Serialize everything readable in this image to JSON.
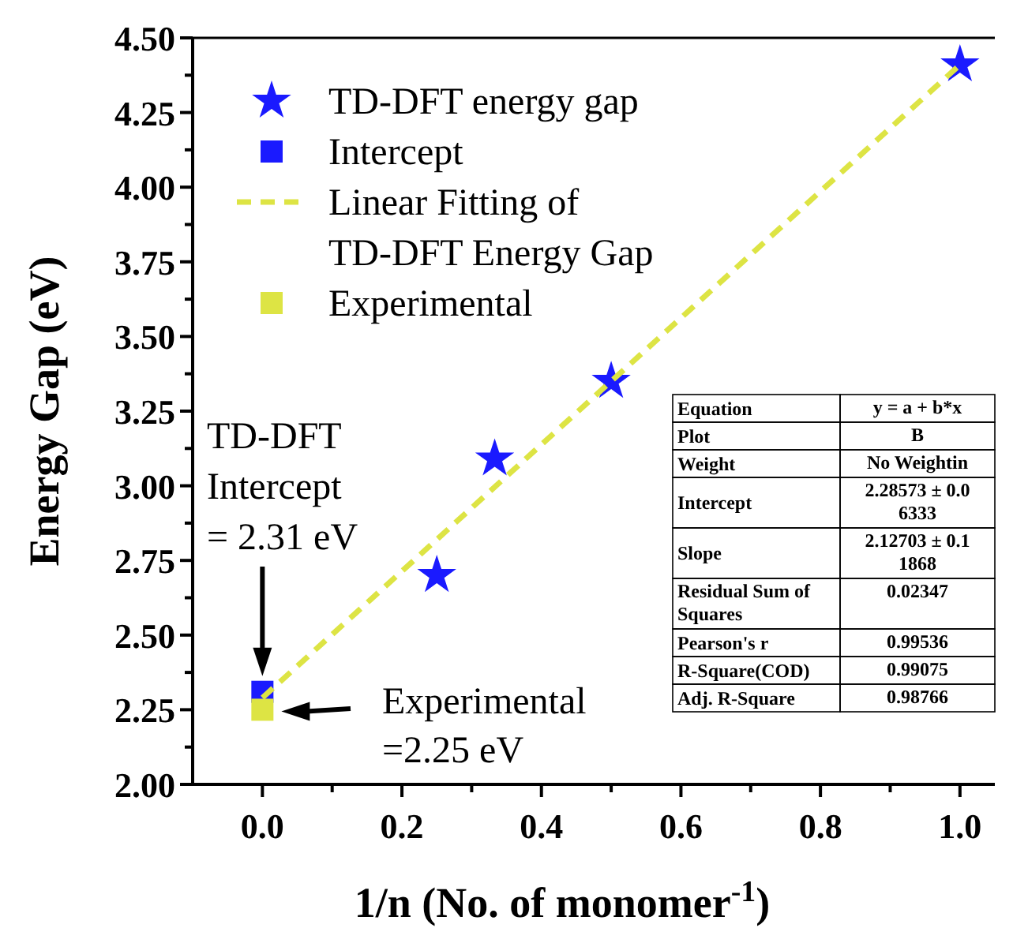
{
  "chart_data": {
    "type": "scatter",
    "xlabel": "1/n (No. of monomer$^{-1}$)",
    "ylabel": "Energy Gap (eV)",
    "xlim": [
      -0.1,
      1.05
    ],
    "xticks": [
      {
        "value": 0,
        "label": "0.0"
      },
      {
        "value": 0.2,
        "label": "0.2"
      },
      {
        "value": 0.4,
        "label": "0.4"
      },
      {
        "value": 0.6,
        "label": "0.6"
      },
      {
        "value": 0.8,
        "label": "0.8"
      },
      {
        "value": 1,
        "label": "1.0"
      }
    ],
    "ylim": [
      2,
      4.5
    ],
    "yticks": [
      {
        "value": 2,
        "label": "2.00"
      },
      {
        "value": 2.25,
        "label": "2.25"
      },
      {
        "value": 2.5,
        "label": "2.50"
      },
      {
        "value": 2.75,
        "label": "2.75"
      },
      {
        "value": 3,
        "label": "3.00"
      },
      {
        "value": 3.25,
        "label": "3.25"
      },
      {
        "value": 3.5,
        "label": "3.50"
      },
      {
        "value": 3.75,
        "label": "3.75"
      },
      {
        "value": 4,
        "label": "4.00"
      },
      {
        "value": 4.25,
        "label": "4.25"
      },
      {
        "value": 4.5,
        "label": "4.50"
      }
    ],
    "legend": "top left",
    "grid": false,
    "series": [
      {
        "name": "TD-DFT energy gap",
        "marker": "star",
        "color": "#1a1aff",
        "x": [
          0.25,
          0.333,
          0.5,
          1
        ],
        "values": [
          2.7,
          3.09,
          3.35,
          4.41
        ]
      },
      {
        "name": "Intercept",
        "marker": "square",
        "color": "#1a1aff",
        "x": [
          0
        ],
        "values": [
          2.31
        ]
      },
      {
        "name": "Linear Fitting of TD-DFT Energy Gap",
        "type": "line",
        "marker": "none",
        "line_style": "dashed",
        "color": "#dde444",
        "x": [
          0,
          1
        ],
        "values": [
          2.29,
          4.41
        ]
      },
      {
        "name": "Experimental",
        "marker": "square",
        "color": "#dde444",
        "x": [
          0
        ],
        "values": [
          2.25
        ]
      }
    ],
    "annotations": [
      "TD-DFT Intercept = 2.31 eV",
      "Experimental =2.25 eV",
      "Equation",
      "y = a + b*x",
      "Plot",
      "B",
      "Weight",
      "No Weightin",
      "Intercept",
      "2.28573 ± 0.06333",
      "Slope",
      "2.12703 ± 0.11868",
      "Residual Sum of Squares",
      "0.02347",
      "Pearson's r",
      "0.99536",
      "R-Square(COD)",
      "0.99075",
      "Adj. R-Square",
      "0.98766"
    ]
  }
}
